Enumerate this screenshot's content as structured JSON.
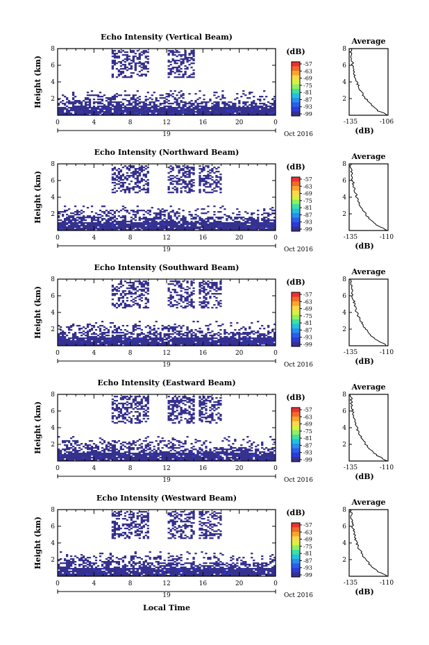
{
  "x_axis_label": "Local Time",
  "colorbar": {
    "unit": "(dB)",
    "ticks": [
      "-57",
      "-63",
      "-69",
      "-75",
      "-81",
      "-87",
      "-93",
      "-99"
    ],
    "colors": [
      "#ee3030",
      "#f56a2a",
      "#fba52a",
      "#ffd84a",
      "#d9f040",
      "#8ef062",
      "#3fe0a0",
      "#22c0e0",
      "#2a8ef0",
      "#2a5ee8",
      "#2e3bd8",
      "#35318e"
    ]
  },
  "chart_data": [
    {
      "type": "heatmap",
      "title": "Echo Intensity (Vertical Beam)",
      "ylabel": "Height (km)",
      "xlim": [
        0,
        24
      ],
      "ylim": [
        0,
        8
      ],
      "x_ticks": [
        "0",
        "4",
        "8",
        "12",
        "16",
        "20",
        "0"
      ],
      "y_ticks": [
        "2",
        "4",
        "6",
        "8"
      ],
      "date_center": "19",
      "date_right": "Oct 2016",
      "profile": {
        "title": "Average",
        "xlabel": "(dB)",
        "x_ticks": [
          "-135",
          "-106"
        ],
        "y_ticks": [
          "2",
          "4",
          "6",
          "8"
        ]
      }
    },
    {
      "type": "heatmap",
      "title": "Echo Intensity (Northward Beam)",
      "ylabel": "Height (km)",
      "xlim": [
        0,
        24
      ],
      "ylim": [
        0,
        8
      ],
      "x_ticks": [
        "0",
        "4",
        "8",
        "12",
        "16",
        "20",
        "0"
      ],
      "y_ticks": [
        "2",
        "4",
        "6",
        "8"
      ],
      "date_center": "19",
      "date_right": "Oct 2016",
      "profile": {
        "title": "Average",
        "xlabel": "(dB)",
        "x_ticks": [
          "-135",
          "-110"
        ],
        "y_ticks": [
          "2",
          "4",
          "6",
          "8"
        ]
      }
    },
    {
      "type": "heatmap",
      "title": "Echo Intensity (Southward Beam)",
      "ylabel": "Height (km)",
      "xlim": [
        0,
        24
      ],
      "ylim": [
        0,
        8
      ],
      "x_ticks": [
        "0",
        "4",
        "8",
        "12",
        "16",
        "20",
        "0"
      ],
      "y_ticks": [
        "2",
        "4",
        "6",
        "8"
      ],
      "date_center": "19",
      "date_right": "Oct 2016",
      "profile": {
        "title": "Average",
        "xlabel": "(dB)",
        "x_ticks": [
          "-135",
          "-110"
        ],
        "y_ticks": [
          "2",
          "4",
          "6",
          "8"
        ]
      }
    },
    {
      "type": "heatmap",
      "title": "Echo Intensity (Eastward Beam)",
      "ylabel": "Height (km)",
      "xlim": [
        0,
        24
      ],
      "ylim": [
        0,
        8
      ],
      "x_ticks": [
        "0",
        "4",
        "8",
        "12",
        "16",
        "20",
        "0"
      ],
      "y_ticks": [
        "2",
        "4",
        "6",
        "8"
      ],
      "date_center": "19",
      "date_right": "Oct 2016",
      "profile": {
        "title": "Average",
        "xlabel": "(dB)",
        "x_ticks": [
          "-135",
          "-110"
        ],
        "y_ticks": [
          "2",
          "4",
          "6",
          "8"
        ]
      }
    },
    {
      "type": "heatmap",
      "title": "Echo Intensity (Westward Beam)",
      "ylabel": "Height (km)",
      "xlim": [
        0,
        24
      ],
      "ylim": [
        0,
        8
      ],
      "x_ticks": [
        "0",
        "4",
        "8",
        "12",
        "16",
        "20",
        "0"
      ],
      "y_ticks": [
        "2",
        "4",
        "6",
        "8"
      ],
      "date_center": "19",
      "date_right": "Oct 2016",
      "profile": {
        "title": "Average",
        "xlabel": "(dB)",
        "x_ticks": [
          "-135",
          "-110"
        ],
        "y_ticks": [
          "2",
          "4",
          "6",
          "8"
        ]
      }
    }
  ]
}
